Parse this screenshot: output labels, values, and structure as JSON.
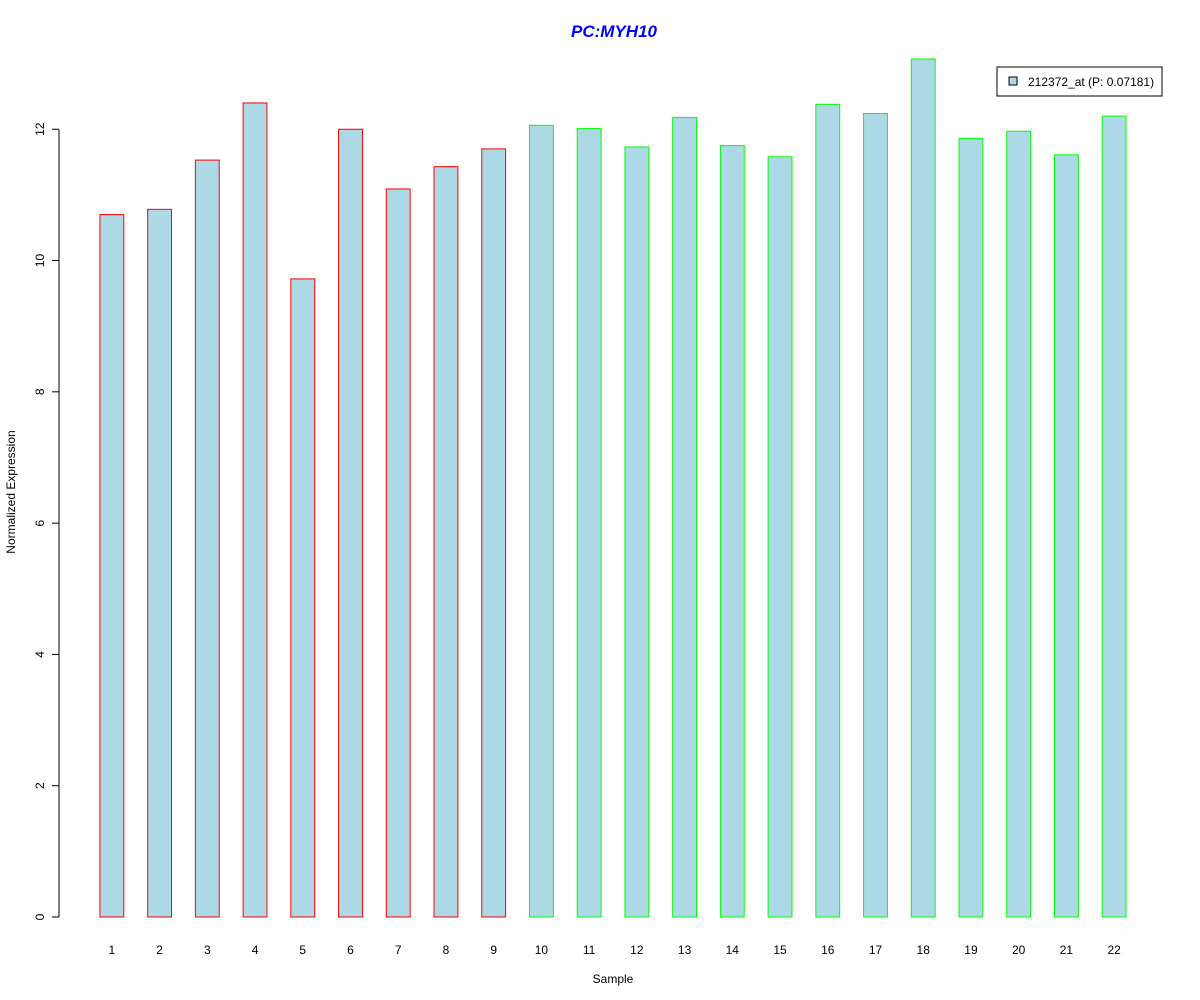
{
  "chart_data": {
    "type": "bar",
    "title": "PC:MYH10",
    "xlabel": "Sample",
    "ylabel": "Normalized Expression",
    "categories": [
      "1",
      "2",
      "3",
      "4",
      "5",
      "6",
      "7",
      "8",
      "9",
      "10",
      "11",
      "12",
      "13",
      "14",
      "15",
      "16",
      "17",
      "18",
      "19",
      "20",
      "21",
      "22"
    ],
    "series": [
      {
        "name": "212372_at (P: 0.07181)",
        "values": [
          10.7,
          10.78,
          11.53,
          12.4,
          9.72,
          12.0,
          11.09,
          11.43,
          11.7,
          12.06,
          12.01,
          11.73,
          12.18,
          11.75,
          11.58,
          12.38,
          12.24,
          13.07,
          11.86,
          11.97,
          11.61,
          12.2
        ]
      }
    ],
    "group_colors": [
      "#ff0000",
      "#ff0000",
      "#ff0000",
      "#ff0000",
      "#ff0000",
      "#ff0000",
      "#ff0000",
      "#ff0000",
      "#ff0000",
      "#00ff00",
      "#00ff00",
      "#00ff00",
      "#00ff00",
      "#00ff00",
      "#00ff00",
      "#00ff00",
      "#00ff00",
      "#00ff00",
      "#00ff00",
      "#00ff00",
      "#00ff00",
      "#00ff00"
    ],
    "bar_fill": "#add8e6",
    "title_color": "#0000ff",
    "yticks": [
      0,
      2,
      4,
      6,
      8,
      10,
      12
    ],
    "ylim": [
      0,
      13.07
    ],
    "grid": false,
    "legend_position": "top-right"
  }
}
